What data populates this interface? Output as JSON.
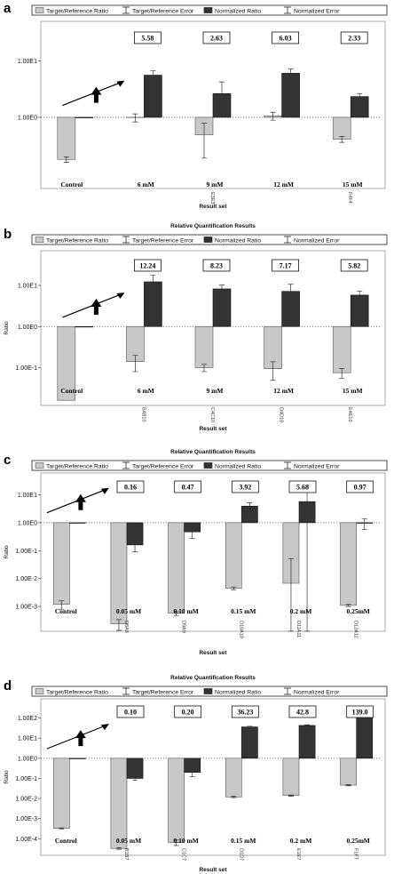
{
  "legend": {
    "target_reference_ratio": "Target/Reference Ratio",
    "target_reference_error": "Target/Reference Error",
    "normalized_ratio": "Normalized Ratio",
    "normalized_error": "Normalized Error"
  },
  "colors": {
    "target_reference": "#c8c8c8",
    "normalized": "#333333",
    "frame": "#222222"
  },
  "chart_data": [
    {
      "panel": "a",
      "type": "bar",
      "title": "",
      "xlabel": "Result set",
      "ylabel": "",
      "yscale": "log",
      "ylim": [
        0.055,
        50
      ],
      "yticks": [
        {
          "value": 10,
          "label": "1.00E1"
        },
        {
          "value": 1,
          "label": "1.00E0"
        }
      ],
      "baseline": 1,
      "categories": [
        "Control",
        "6 mM",
        "9 mM",
        "12 mM",
        "15 mM"
      ],
      "well_labels": [
        "",
        "",
        "E3E3",
        "",
        "F4F4"
      ],
      "fold_labels": [
        "",
        "5.58",
        "2.63",
        "6.03",
        "2.33"
      ],
      "series": [
        {
          "name": "Target/Reference Ratio",
          "values": [
            0.18,
            0.99,
            0.49,
            1.06,
            0.41
          ],
          "error": [
            0.02,
            0.16,
            0.3,
            0.17,
            0.05
          ]
        },
        {
          "name": "Normalized Ratio",
          "values": [
            1,
            5.58,
            2.63,
            6.03,
            2.33
          ],
          "error": [
            0,
            1.1,
            1.6,
            1.1,
            0.3
          ]
        }
      ],
      "annotations": {
        "arrow_group": 1,
        "up_arrow_group": 1
      }
    },
    {
      "panel": "b",
      "type": "bar",
      "title": "Relative Quantification Results",
      "xlabel": "Result set",
      "ylabel": "Ratio",
      "yscale": "log",
      "ylim": [
        0.012,
        70
      ],
      "yticks": [
        {
          "value": 10,
          "label": "1.00E1"
        },
        {
          "value": 1,
          "label": "1.00E0"
        },
        {
          "value": 0.1,
          "label": "1.00E-1"
        }
      ],
      "baseline": 1,
      "categories": [
        "Control",
        "6 mM",
        "9 mM",
        "12 mM",
        "15 mM"
      ],
      "well_labels": [
        "",
        "B4B10",
        "C4C10",
        "D4D10",
        "E4E10"
      ],
      "fold_labels": [
        "",
        "12.24",
        "8.23",
        "7.17",
        "5.82"
      ],
      "series": [
        {
          "name": "Target/Reference Ratio",
          "values": [
            0.016,
            0.14,
            0.1,
            0.094,
            0.075
          ],
          "error": [
            0,
            0.06,
            0.02,
            0.045,
            0.02
          ]
        },
        {
          "name": "Normalized Ratio",
          "values": [
            1,
            12.24,
            8.23,
            7.17,
            5.82
          ],
          "error": [
            0,
            5.5,
            2.0,
            3.5,
            1.5
          ]
        }
      ],
      "annotations": {
        "arrow_group": 1,
        "up_arrow_group": 1
      }
    },
    {
      "panel": "c",
      "type": "bar",
      "title": "Relative Quantification Results",
      "xlabel": "Result set",
      "ylabel": "Ratio",
      "yscale": "log",
      "ylim": [
        0.00013,
        60
      ],
      "yticks": [
        {
          "value": 10,
          "label": "1.00E1"
        },
        {
          "value": 1,
          "label": "1.00E0"
        },
        {
          "value": 0.1,
          "label": "1.00E-1"
        },
        {
          "value": 0.01,
          "label": "1.00E-2"
        },
        {
          "value": 0.001,
          "label": "1.00E-3"
        }
      ],
      "baseline": 1,
      "categories": [
        "Control",
        "0.05 mM",
        "0.10 mM",
        "0.15 mM",
        "0.2 mM",
        "0.25mM"
      ],
      "well_labels": [
        "",
        "D8A8",
        "D9A9",
        "D10A10",
        "D11A11",
        "D12A12"
      ],
      "fold_labels": [
        "",
        "0.16",
        "0.47",
        "3.92",
        "5.68",
        "0.97"
      ],
      "series": [
        {
          "name": "Target/Reference Ratio",
          "values": [
            0.0012,
            0.00024,
            0.00058,
            0.0045,
            0.0068,
            0.0011
          ],
          "error": [
            0.0004,
            0.0001,
            0.0001,
            0.0005,
            0.045,
            0.0001
          ]
        },
        {
          "name": "Normalized Ratio",
          "values": [
            1,
            0.16,
            0.47,
            3.92,
            5.68,
            0.97
          ],
          "error": [
            0,
            0.07,
            0.2,
            1.2,
            9.0,
            0.4
          ]
        }
      ],
      "annotations": {
        "arrow_group": 1,
        "up_arrow_group": 1
      }
    },
    {
      "panel": "d",
      "type": "bar",
      "title": "Relative Quantification Results",
      "xlabel": "Result set",
      "ylabel": "Ratio",
      "yscale": "log",
      "ylim": [
        1.5e-05,
        900
      ],
      "yticks": [
        {
          "value": 100,
          "label": "1.00E2"
        },
        {
          "value": 10,
          "label": "1.00E1"
        },
        {
          "value": 1,
          "label": "1.00E0"
        },
        {
          "value": 0.1,
          "label": "1.00E-1"
        },
        {
          "value": 0.01,
          "label": "1.00E-2"
        },
        {
          "value": 0.001,
          "label": "1.00E-3"
        },
        {
          "value": 0.0001,
          "label": "1.00E-4"
        }
      ],
      "baseline": 1,
      "categories": [
        "Control",
        "0.05 mM",
        "0.10 mM",
        "0.15 mM",
        "0.2 mM",
        "0.25mM"
      ],
      "well_labels": [
        "",
        "B1B7",
        "C1C7",
        "D1D7",
        "E1E7",
        "F1F7"
      ],
      "fold_labels": [
        "",
        "0.10",
        "0.20",
        "36.23",
        "42.8",
        "139.0"
      ],
      "series": [
        {
          "name": "Target/Reference Ratio",
          "values": [
            0.00033,
            3.3e-05,
            6.6e-05,
            0.012,
            0.014,
            0.046
          ],
          "error": [
            2e-05,
            3e-06,
            2e-05,
            0.001,
            0.001,
            0.003
          ]
        },
        {
          "name": "Normalized Ratio",
          "values": [
            1,
            0.1,
            0.2,
            36.23,
            42.8,
            139.0
          ],
          "error": [
            0,
            0.02,
            0.08,
            3,
            3,
            10
          ]
        }
      ],
      "annotations": {
        "arrow_group": 1,
        "up_arrow_group": 1
      }
    }
  ]
}
